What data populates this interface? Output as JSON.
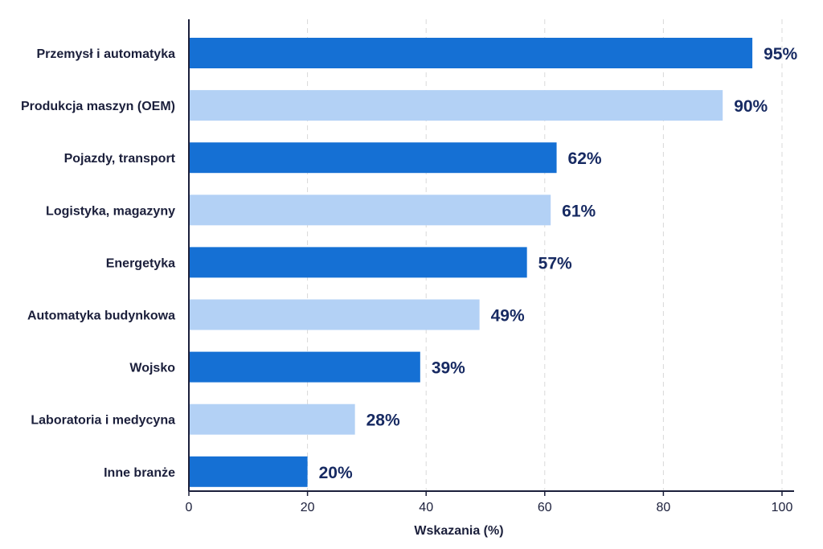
{
  "chart_data": {
    "type": "bar",
    "orientation": "horizontal",
    "categories": [
      "Przemysł i automatyka",
      "Produkcja maszyn (OEM)",
      "Pojazdy, transport",
      "Logistyka, magazyny",
      "Energetyka",
      "Automatyka budynkowa",
      "Wojsko",
      "Laboratoria i medycyna",
      "Inne branże"
    ],
    "values": [
      95,
      90,
      62,
      61,
      57,
      49,
      39,
      28,
      20
    ],
    "value_labels": [
      "95%",
      "90%",
      "62%",
      "61%",
      "57%",
      "49%",
      "39%",
      "28%",
      "20%"
    ],
    "xlabel": "Wskazania (%)",
    "ylabel": "",
    "xlim": [
      0,
      100
    ],
    "xticks": [
      0,
      20,
      40,
      60,
      80,
      100
    ],
    "xtick_labels": [
      "0",
      "20",
      "40",
      "60",
      "80",
      "100"
    ],
    "grid": "vertical dashed",
    "legend": "none",
    "colors": {
      "dark_bar": "#1570d4",
      "light_bar": "#b3d1f5",
      "value_text": "#172a62",
      "axis": "#1b1f3b",
      "grid": "#d9d9d9"
    }
  }
}
